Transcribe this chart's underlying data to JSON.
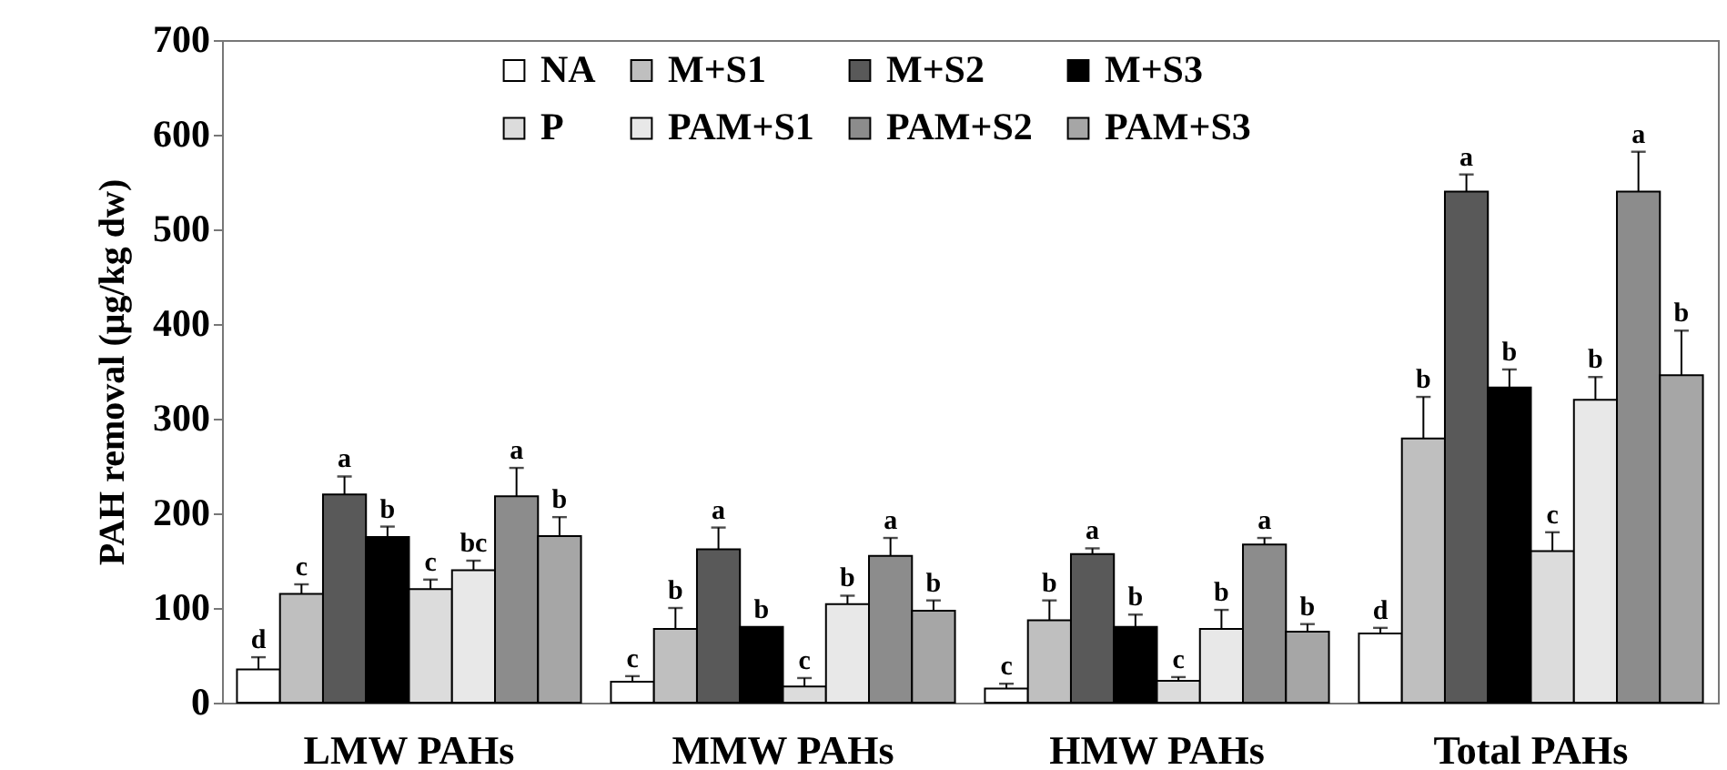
{
  "chart_data": {
    "type": "bar",
    "ylabel": "PAH removal (μg/kg dw)",
    "categories": [
      "LMW PAHs",
      "MMW PAHs",
      "HMW PAHs",
      "Total PAHs"
    ],
    "ylim": [
      0,
      700
    ],
    "yticks": [
      0,
      100,
      200,
      300,
      400,
      500,
      600,
      700
    ],
    "grid": false,
    "legend": "top",
    "series": [
      {
        "name": "NA",
        "color": "#ffffff",
        "values": [
          35,
          22,
          15,
          73
        ],
        "errors": [
          [
            35,
            48
          ],
          [
            22,
            28
          ],
          [
            15,
            20
          ],
          [
            73,
            79
          ]
        ],
        "value_labels": [
          "d",
          "c",
          "c",
          "d"
        ]
      },
      {
        "name": "M+S1",
        "color": "#bfbfbf",
        "values": [
          115,
          78,
          87,
          279
        ],
        "errors": [
          [
            115,
            125
          ],
          [
            78,
            100
          ],
          [
            87,
            108
          ],
          [
            279,
            323
          ]
        ],
        "value_labels": [
          "c",
          "b",
          "b",
          "b"
        ]
      },
      {
        "name": "M+S2",
        "color": "#595959",
        "values": [
          220,
          162,
          157,
          540
        ],
        "errors": [
          [
            220,
            239
          ],
          [
            162,
            185
          ],
          [
            157,
            163
          ],
          [
            540,
            558
          ]
        ],
        "value_labels": [
          "a",
          "a",
          "a",
          "a"
        ]
      },
      {
        "name": "M+S3",
        "color": "#000000",
        "values": [
          175,
          80,
          80,
          333
        ],
        "errors": [
          [
            175,
            186
          ],
          null,
          [
            80,
            93
          ],
          [
            333,
            352
          ]
        ],
        "value_labels": [
          "b",
          "b",
          "b",
          "b"
        ]
      },
      {
        "name": "P",
        "color": "#dcdcdc",
        "values": [
          120,
          17,
          23,
          160
        ],
        "errors": [
          [
            120,
            130
          ],
          [
            17,
            26
          ],
          [
            23,
            27
          ],
          [
            160,
            180
          ]
        ],
        "value_labels": [
          "c",
          "c",
          "c",
          "c"
        ]
      },
      {
        "name": "PAM+S1",
        "color": "#e8e8e8",
        "values": [
          140,
          104,
          78,
          320
        ],
        "errors": [
          [
            140,
            150
          ],
          [
            104,
            113
          ],
          [
            78,
            98
          ],
          [
            320,
            344
          ]
        ],
        "value_labels": [
          "bc",
          "b",
          "b",
          "b"
        ]
      },
      {
        "name": "PAM+S2",
        "color": "#8c8c8c",
        "values": [
          218,
          155,
          167,
          540
        ],
        "errors": [
          [
            218,
            248
          ],
          [
            155,
            174
          ],
          [
            167,
            174
          ],
          [
            540,
            582
          ]
        ],
        "value_labels": [
          "a",
          "a",
          "a",
          "a"
        ]
      },
      {
        "name": "PAM+S3",
        "color": "#a6a6a6",
        "values": [
          176,
          97,
          75,
          346
        ],
        "errors": [
          [
            176,
            196
          ],
          [
            97,
            108
          ],
          [
            75,
            83
          ],
          [
            346,
            393
          ]
        ],
        "value_labels": [
          "b",
          "b",
          "b",
          "b"
        ]
      }
    ]
  }
}
